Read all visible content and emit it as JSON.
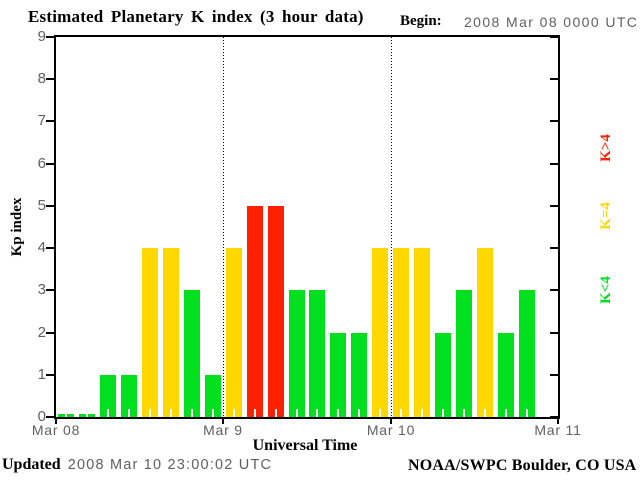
{
  "title": "Estimated Planetary K index (3 hour data)",
  "begin_label": "Begin:",
  "begin_value": "2008 Mar 08 0000 UTC",
  "footer": {
    "updated_label": "Updated",
    "updated_value": "2008 Mar 10 23:00:02 UTC",
    "credit": "NOAA/SWPC Boulder, CO USA"
  },
  "chart_data": {
    "type": "bar",
    "title": "Estimated Planetary K index (3 hour data)",
    "xlabel": "Universal Time",
    "ylabel": "Kp index",
    "ylim": [
      0,
      9
    ],
    "yticks": [
      0,
      1,
      2,
      3,
      4,
      5,
      6,
      7,
      8,
      9
    ],
    "interval_hours": 3,
    "x_day_labels": [
      "Mar 08",
      "Mar 9",
      "Mar 10",
      "Mar 11"
    ],
    "days": [
      {
        "date": "Mar 08",
        "values": [
          0,
          0,
          1,
          1,
          4,
          4,
          3,
          1
        ]
      },
      {
        "date": "Mar 9",
        "values": [
          4,
          5,
          5,
          3,
          3,
          2,
          2,
          4
        ]
      },
      {
        "date": "Mar 10",
        "values": [
          4,
          4,
          2,
          3,
          4,
          2,
          3
        ]
      }
    ],
    "colors": {
      "low": "#00e01e",
      "mid": "#ffd800",
      "high": "#ff2000"
    },
    "color_rule": "green K<4, yellow K=4, red K>4",
    "legend": [
      {
        "label": "K>4",
        "color": "#ff2000"
      },
      {
        "label": "K=4",
        "color": "#ffd800"
      },
      {
        "label": "K<4",
        "color": "#00e01e"
      }
    ],
    "grid": "dotted vertical lines at day boundaries",
    "legend_position": "right, rotated 90deg"
  }
}
